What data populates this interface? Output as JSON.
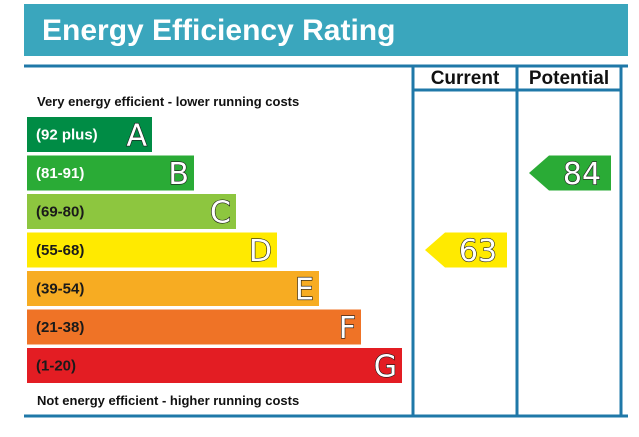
{
  "header": {
    "title": "Energy Efficiency Rating"
  },
  "columns": {
    "current": "Current",
    "potential": "Potential"
  },
  "captions": {
    "top": "Very energy efficient - lower running costs",
    "bottom": "Not energy efficient - higher running costs"
  },
  "chart_data": {
    "type": "bar",
    "title": "Energy Efficiency Rating",
    "bands": [
      {
        "letter": "A",
        "range": "(92 plus)",
        "color": "#008c45",
        "text_color": "#ffffff"
      },
      {
        "letter": "B",
        "range": "(81-91)",
        "color": "#2aab36",
        "text_color": "#ffffff"
      },
      {
        "letter": "C",
        "range": "(69-80)",
        "color": "#8dc63f",
        "text_color": "#1a1a1a"
      },
      {
        "letter": "D",
        "range": "(55-68)",
        "color": "#ffea00",
        "text_color": "#1a1a1a"
      },
      {
        "letter": "E",
        "range": "(39-54)",
        "color": "#f7ac22",
        "text_color": "#1a1a1a"
      },
      {
        "letter": "F",
        "range": "(21-38)",
        "color": "#ef7326",
        "text_color": "#1a1a1a"
      },
      {
        "letter": "G",
        "range": "(1-20)",
        "color": "#e31d23",
        "text_color": "#1a1a1a"
      }
    ],
    "current": {
      "value": 63,
      "band": "D",
      "color": "#ffea00"
    },
    "potential": {
      "value": 84,
      "band": "B",
      "color": "#2aab36"
    }
  }
}
